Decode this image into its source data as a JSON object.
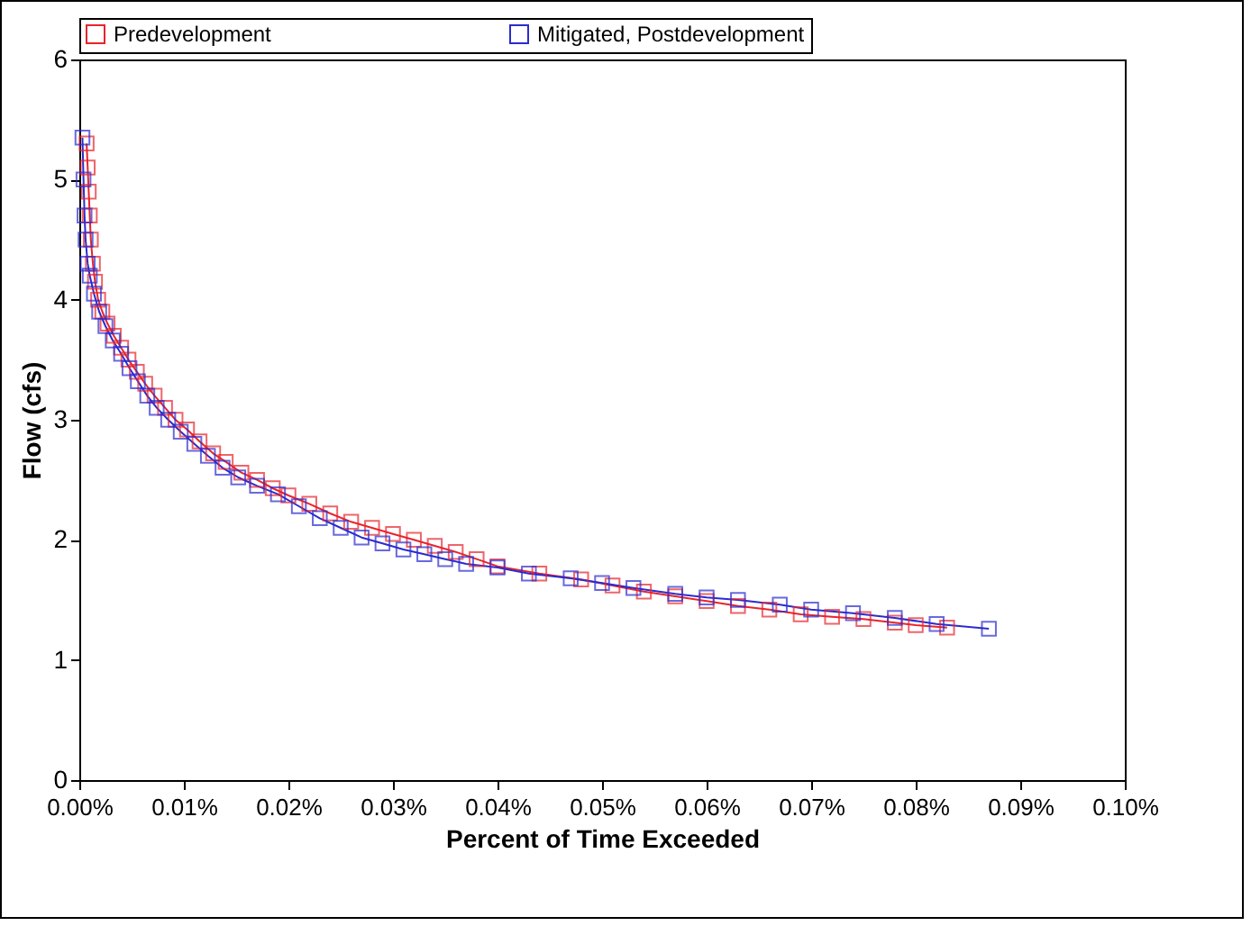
{
  "chart_data": {
    "type": "line",
    "xlabel": "Percent of Time Exceeded",
    "ylabel": "Flow (cfs)",
    "xlim": [
      0,
      0.1
    ],
    "ylim": [
      0,
      6
    ],
    "xticks": [
      {
        "value": 0,
        "label": "0.00%"
      },
      {
        "value": 0.01,
        "label": "0.01%"
      },
      {
        "value": 0.02,
        "label": "0.02%"
      },
      {
        "value": 0.03,
        "label": "0.03%"
      },
      {
        "value": 0.04,
        "label": "0.04%"
      },
      {
        "value": 0.05,
        "label": "0.05%"
      },
      {
        "value": 0.06,
        "label": "0.06%"
      },
      {
        "value": 0.07,
        "label": "0.07%"
      },
      {
        "value": 0.08,
        "label": "0.08%"
      },
      {
        "value": 0.09,
        "label": "0.09%"
      },
      {
        "value": 0.1,
        "label": "0.10%"
      }
    ],
    "yticks": [
      0,
      1,
      2,
      3,
      4,
      5,
      6
    ],
    "grid": false,
    "legend": "top",
    "marker": "square",
    "line_style": "solid",
    "series": [
      {
        "name": "Predevelopment",
        "color": "#e8242c",
        "x": [
          0.0007,
          0.0008,
          0.0009,
          0.001,
          0.0011,
          0.0013,
          0.0015,
          0.0018,
          0.0022,
          0.0027,
          0.0033,
          0.004,
          0.0047,
          0.0055,
          0.0063,
          0.0072,
          0.0082,
          0.0092,
          0.0103,
          0.0115,
          0.0128,
          0.014,
          0.0155,
          0.017,
          0.0185,
          0.02,
          0.022,
          0.024,
          0.026,
          0.028,
          0.03,
          0.032,
          0.034,
          0.036,
          0.038,
          0.04,
          0.044,
          0.048,
          0.051,
          0.054,
          0.057,
          0.06,
          0.063,
          0.066,
          0.069,
          0.072,
          0.075,
          0.078,
          0.08,
          0.083
        ],
        "values": [
          5.3,
          5.1,
          4.9,
          4.7,
          4.5,
          4.3,
          4.15,
          4.0,
          3.9,
          3.8,
          3.7,
          3.6,
          3.5,
          3.4,
          3.3,
          3.2,
          3.1,
          3.0,
          2.92,
          2.82,
          2.72,
          2.65,
          2.56,
          2.5,
          2.43,
          2.37,
          2.3,
          2.22,
          2.15,
          2.1,
          2.05,
          2.0,
          1.95,
          1.9,
          1.84,
          1.78,
          1.72,
          1.67,
          1.62,
          1.57,
          1.53,
          1.49,
          1.45,
          1.42,
          1.38,
          1.36,
          1.34,
          1.31,
          1.29,
          1.27
        ]
      },
      {
        "name": "Mitigated, Postdevelopment",
        "color": "#2b2bd0",
        "x": [
          0.0003,
          0.0004,
          0.0005,
          0.0006,
          0.0008,
          0.001,
          0.0014,
          0.0019,
          0.0025,
          0.0032,
          0.004,
          0.0048,
          0.0056,
          0.0065,
          0.0074,
          0.0085,
          0.0097,
          0.011,
          0.0123,
          0.0137,
          0.0152,
          0.017,
          0.019,
          0.021,
          0.023,
          0.025,
          0.027,
          0.029,
          0.031,
          0.033,
          0.035,
          0.037,
          0.04,
          0.043,
          0.047,
          0.05,
          0.053,
          0.057,
          0.06,
          0.063,
          0.067,
          0.07,
          0.074,
          0.078,
          0.082,
          0.087
        ],
        "values": [
          5.35,
          5.0,
          4.7,
          4.5,
          4.3,
          4.2,
          4.05,
          3.9,
          3.78,
          3.66,
          3.55,
          3.43,
          3.32,
          3.2,
          3.1,
          3.0,
          2.9,
          2.8,
          2.7,
          2.6,
          2.52,
          2.45,
          2.38,
          2.28,
          2.18,
          2.1,
          2.02,
          1.97,
          1.92,
          1.88,
          1.84,
          1.8,
          1.77,
          1.72,
          1.68,
          1.64,
          1.6,
          1.55,
          1.52,
          1.5,
          1.46,
          1.42,
          1.39,
          1.35,
          1.3,
          1.26
        ]
      }
    ]
  }
}
